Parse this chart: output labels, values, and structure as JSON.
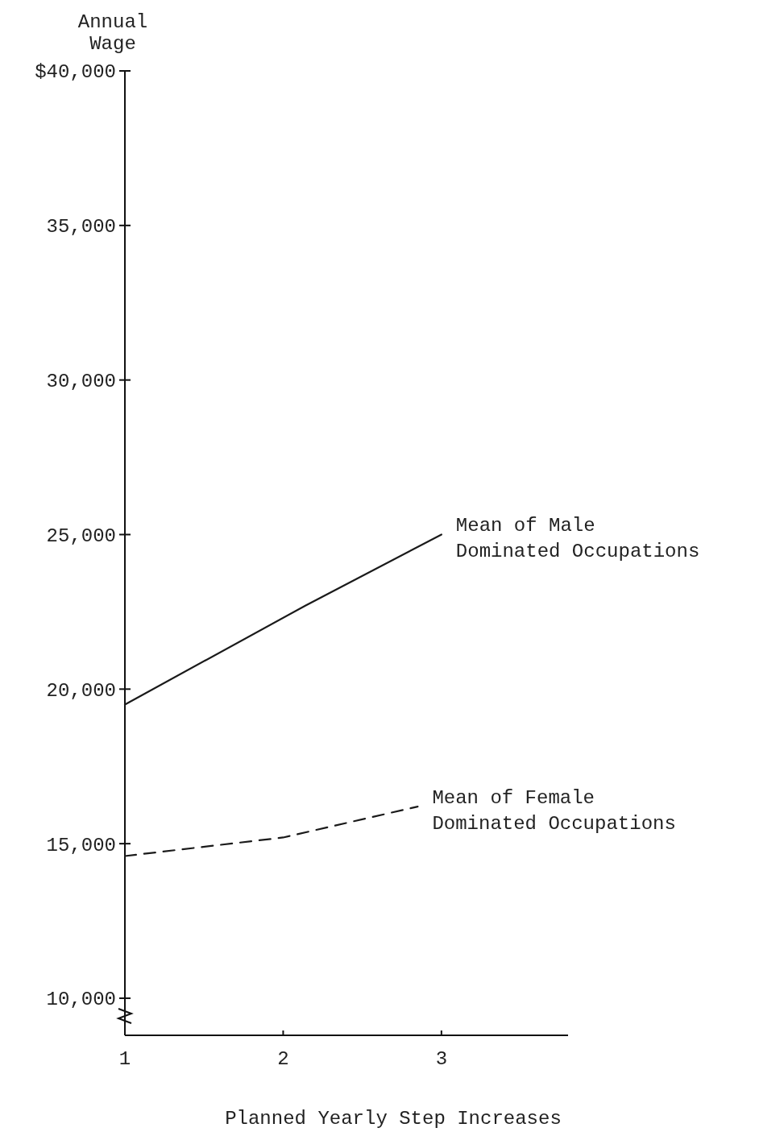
{
  "chart_data": {
    "type": "line",
    "ylabel": "Annual Wage",
    "xlabel": "Planned Yearly Step Increases",
    "xlim": [
      1,
      3.8
    ],
    "xticks": [
      1,
      2,
      3
    ],
    "ylim": [
      8800,
      40000
    ],
    "yticks": [
      {
        "value": 10000,
        "label": "10,000"
      },
      {
        "value": 15000,
        "label": "15,000"
      },
      {
        "value": 20000,
        "label": "20,000"
      },
      {
        "value": 25000,
        "label": "25,000"
      },
      {
        "value": 30000,
        "label": "30,000"
      },
      {
        "value": 35000,
        "label": "35,000"
      },
      {
        "value": 40000,
        "label": "$40,000"
      }
    ],
    "grid": false,
    "series": [
      {
        "name": "Mean of Male Dominated Occupations",
        "color": "#1a1a1a",
        "line_style": "solid",
        "x": [
          1,
          2.14,
          3
        ],
        "values": [
          19500,
          22700,
          25000
        ]
      },
      {
        "name": "Mean of Female Dominated Occupations",
        "color": "#1a1a1a",
        "line_style": "dashed",
        "x": [
          1,
          2,
          2.85
        ],
        "values": [
          14600,
          15200,
          16200
        ]
      }
    ]
  }
}
